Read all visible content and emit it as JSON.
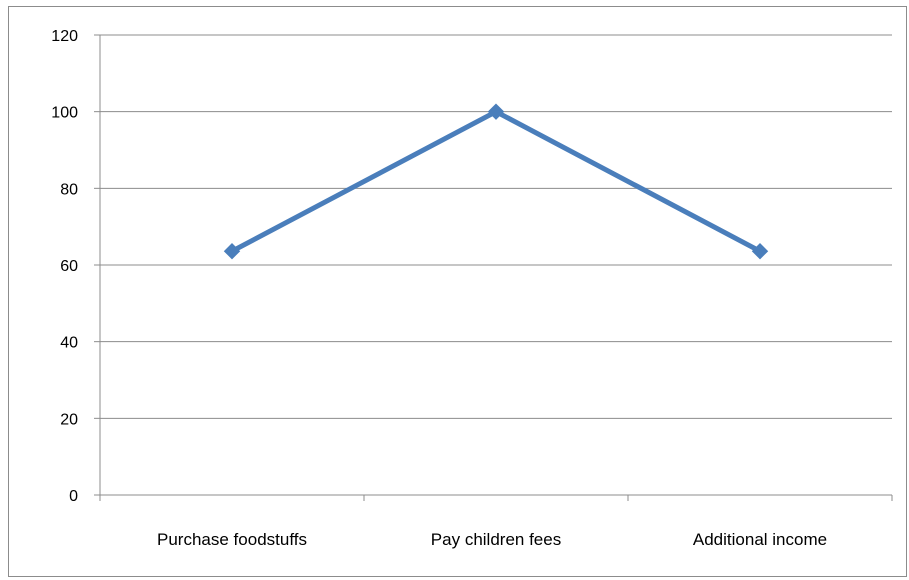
{
  "chart_data": {
    "type": "line",
    "title": "",
    "xlabel": "",
    "ylabel": "",
    "categories": [
      "Purchase foodstuffs",
      "Pay children fees",
      "Additional income"
    ],
    "series": [
      {
        "values": [
          63.6,
          100,
          63.6
        ],
        "color": "#4a7ebb",
        "marker": "diamond"
      }
    ],
    "ylim": [
      0,
      120
    ],
    "yticks": [
      0,
      20,
      40,
      60,
      80,
      100,
      120
    ],
    "grid": true,
    "legend": "none"
  }
}
